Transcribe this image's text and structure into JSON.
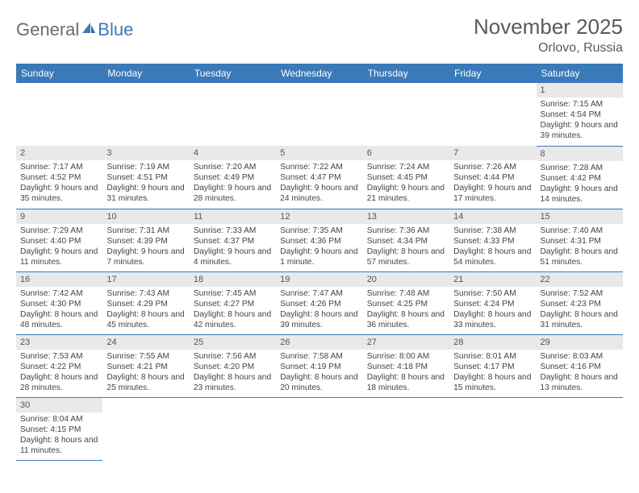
{
  "logo": {
    "part1": "General",
    "part2": "Blue"
  },
  "header": {
    "title": "November 2025",
    "location": "Orlovo, Russia"
  },
  "style": {
    "header_bg": "#3a7ab8",
    "header_fg": "#ffffff",
    "daybar_bg": "#e9e9e9",
    "row_border": "#3a7ab8",
    "page_bg": "#ffffff",
    "text_color": "#444444",
    "title_color": "#5a5a5a",
    "month_fontsize": 26,
    "location_fontsize": 16,
    "dayhead_fontsize": 12,
    "body_fontsize": 10.2
  },
  "daynames": [
    "Sunday",
    "Monday",
    "Tuesday",
    "Wednesday",
    "Thursday",
    "Friday",
    "Saturday"
  ],
  "weeks": [
    [
      null,
      null,
      null,
      null,
      null,
      null,
      {
        "n": "1",
        "sr": "7:15 AM",
        "ss": "4:54 PM",
        "dl": "9 hours and 39 minutes."
      }
    ],
    [
      {
        "n": "2",
        "sr": "7:17 AM",
        "ss": "4:52 PM",
        "dl": "9 hours and 35 minutes."
      },
      {
        "n": "3",
        "sr": "7:19 AM",
        "ss": "4:51 PM",
        "dl": "9 hours and 31 minutes."
      },
      {
        "n": "4",
        "sr": "7:20 AM",
        "ss": "4:49 PM",
        "dl": "9 hours and 28 minutes."
      },
      {
        "n": "5",
        "sr": "7:22 AM",
        "ss": "4:47 PM",
        "dl": "9 hours and 24 minutes."
      },
      {
        "n": "6",
        "sr": "7:24 AM",
        "ss": "4:45 PM",
        "dl": "9 hours and 21 minutes."
      },
      {
        "n": "7",
        "sr": "7:26 AM",
        "ss": "4:44 PM",
        "dl": "9 hours and 17 minutes."
      },
      {
        "n": "8",
        "sr": "7:28 AM",
        "ss": "4:42 PM",
        "dl": "9 hours and 14 minutes."
      }
    ],
    [
      {
        "n": "9",
        "sr": "7:29 AM",
        "ss": "4:40 PM",
        "dl": "9 hours and 11 minutes."
      },
      {
        "n": "10",
        "sr": "7:31 AM",
        "ss": "4:39 PM",
        "dl": "9 hours and 7 minutes."
      },
      {
        "n": "11",
        "sr": "7:33 AM",
        "ss": "4:37 PM",
        "dl": "9 hours and 4 minutes."
      },
      {
        "n": "12",
        "sr": "7:35 AM",
        "ss": "4:36 PM",
        "dl": "9 hours and 1 minute."
      },
      {
        "n": "13",
        "sr": "7:36 AM",
        "ss": "4:34 PM",
        "dl": "8 hours and 57 minutes."
      },
      {
        "n": "14",
        "sr": "7:38 AM",
        "ss": "4:33 PM",
        "dl": "8 hours and 54 minutes."
      },
      {
        "n": "15",
        "sr": "7:40 AM",
        "ss": "4:31 PM",
        "dl": "8 hours and 51 minutes."
      }
    ],
    [
      {
        "n": "16",
        "sr": "7:42 AM",
        "ss": "4:30 PM",
        "dl": "8 hours and 48 minutes."
      },
      {
        "n": "17",
        "sr": "7:43 AM",
        "ss": "4:29 PM",
        "dl": "8 hours and 45 minutes."
      },
      {
        "n": "18",
        "sr": "7:45 AM",
        "ss": "4:27 PM",
        "dl": "8 hours and 42 minutes."
      },
      {
        "n": "19",
        "sr": "7:47 AM",
        "ss": "4:26 PM",
        "dl": "8 hours and 39 minutes."
      },
      {
        "n": "20",
        "sr": "7:48 AM",
        "ss": "4:25 PM",
        "dl": "8 hours and 36 minutes."
      },
      {
        "n": "21",
        "sr": "7:50 AM",
        "ss": "4:24 PM",
        "dl": "8 hours and 33 minutes."
      },
      {
        "n": "22",
        "sr": "7:52 AM",
        "ss": "4:23 PM",
        "dl": "8 hours and 31 minutes."
      }
    ],
    [
      {
        "n": "23",
        "sr": "7:53 AM",
        "ss": "4:22 PM",
        "dl": "8 hours and 28 minutes."
      },
      {
        "n": "24",
        "sr": "7:55 AM",
        "ss": "4:21 PM",
        "dl": "8 hours and 25 minutes."
      },
      {
        "n": "25",
        "sr": "7:56 AM",
        "ss": "4:20 PM",
        "dl": "8 hours and 23 minutes."
      },
      {
        "n": "26",
        "sr": "7:58 AM",
        "ss": "4:19 PM",
        "dl": "8 hours and 20 minutes."
      },
      {
        "n": "27",
        "sr": "8:00 AM",
        "ss": "4:18 PM",
        "dl": "8 hours and 18 minutes."
      },
      {
        "n": "28",
        "sr": "8:01 AM",
        "ss": "4:17 PM",
        "dl": "8 hours and 15 minutes."
      },
      {
        "n": "29",
        "sr": "8:03 AM",
        "ss": "4:16 PM",
        "dl": "8 hours and 13 minutes."
      }
    ],
    [
      {
        "n": "30",
        "sr": "8:04 AM",
        "ss": "4:15 PM",
        "dl": "8 hours and 11 minutes."
      },
      null,
      null,
      null,
      null,
      null,
      null
    ]
  ],
  "labels": {
    "sunrise": "Sunrise: ",
    "sunset": "Sunset: ",
    "daylight": "Daylight: "
  }
}
